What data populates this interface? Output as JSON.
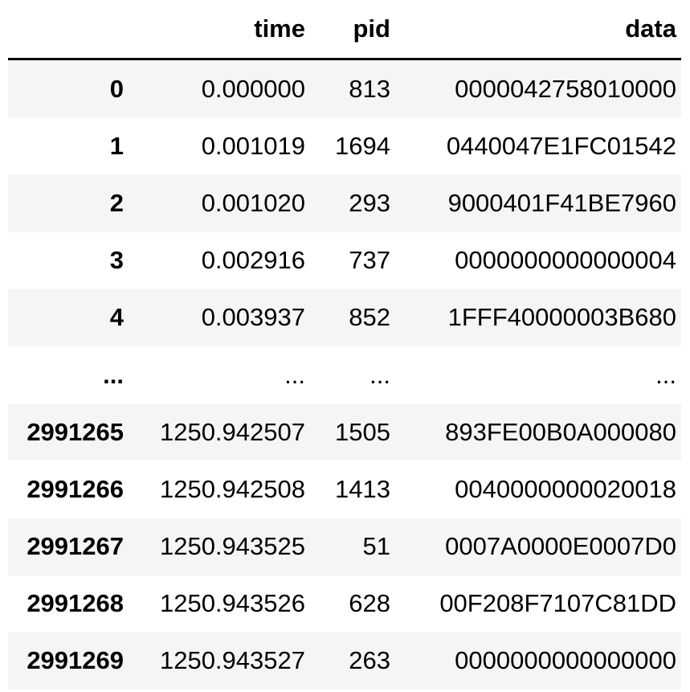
{
  "table": {
    "columns": [
      "",
      "time",
      "pid",
      "data"
    ],
    "rows": [
      {
        "index": "0",
        "time": "0.000000",
        "pid": "813",
        "data": "0000042758010000"
      },
      {
        "index": "1",
        "time": "0.001019",
        "pid": "1694",
        "data": "0440047E1FC01542"
      },
      {
        "index": "2",
        "time": "0.001020",
        "pid": "293",
        "data": "9000401F41BE7960"
      },
      {
        "index": "3",
        "time": "0.002916",
        "pid": "737",
        "data": "0000000000000004"
      },
      {
        "index": "4",
        "time": "0.003937",
        "pid": "852",
        "data": "1FFF40000003B680"
      },
      {
        "index": "...",
        "time": "...",
        "pid": "...",
        "data": "..."
      },
      {
        "index": "2991265",
        "time": "1250.942507",
        "pid": "1505",
        "data": "893FE00B0A000080"
      },
      {
        "index": "2991266",
        "time": "1250.942508",
        "pid": "1413",
        "data": "0040000000020018"
      },
      {
        "index": "2991267",
        "time": "1250.943525",
        "pid": "51",
        "data": "0007A0000E0007D0"
      },
      {
        "index": "2991268",
        "time": "1250.943526",
        "pid": "628",
        "data": "00F208F7107C81DD"
      },
      {
        "index": "2991269",
        "time": "1250.943527",
        "pid": "263",
        "data": "0000000000000000"
      }
    ]
  }
}
